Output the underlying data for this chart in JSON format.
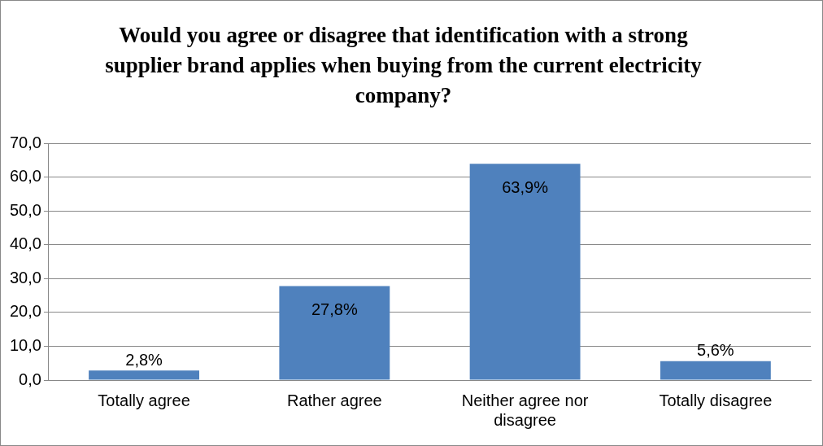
{
  "chart_data": {
    "type": "bar",
    "title": "Would you agree or disagree that identification with a strong supplier brand applies when buying from the current electricity company?",
    "categories": [
      "Totally agree",
      "Rather agree",
      "Neither agree nor disagree",
      "Totally disagree"
    ],
    "values": [
      2.8,
      27.8,
      63.9,
      5.6
    ],
    "value_labels": [
      "2,8%",
      "27,8%",
      "63,9%",
      "5,6%"
    ],
    "color": "#4f81bd",
    "ylim": [
      0,
      70
    ],
    "yticks": [
      {
        "value": 0,
        "label": "0,0"
      },
      {
        "value": 10,
        "label": "10,0"
      },
      {
        "value": 20,
        "label": "20,0"
      },
      {
        "value": 30,
        "label": "30,0"
      },
      {
        "value": 40,
        "label": "40,0"
      },
      {
        "value": 50,
        "label": "50,0"
      },
      {
        "value": 60,
        "label": "60,0"
      },
      {
        "value": 70,
        "label": "70,0"
      }
    ],
    "grid": "y"
  }
}
